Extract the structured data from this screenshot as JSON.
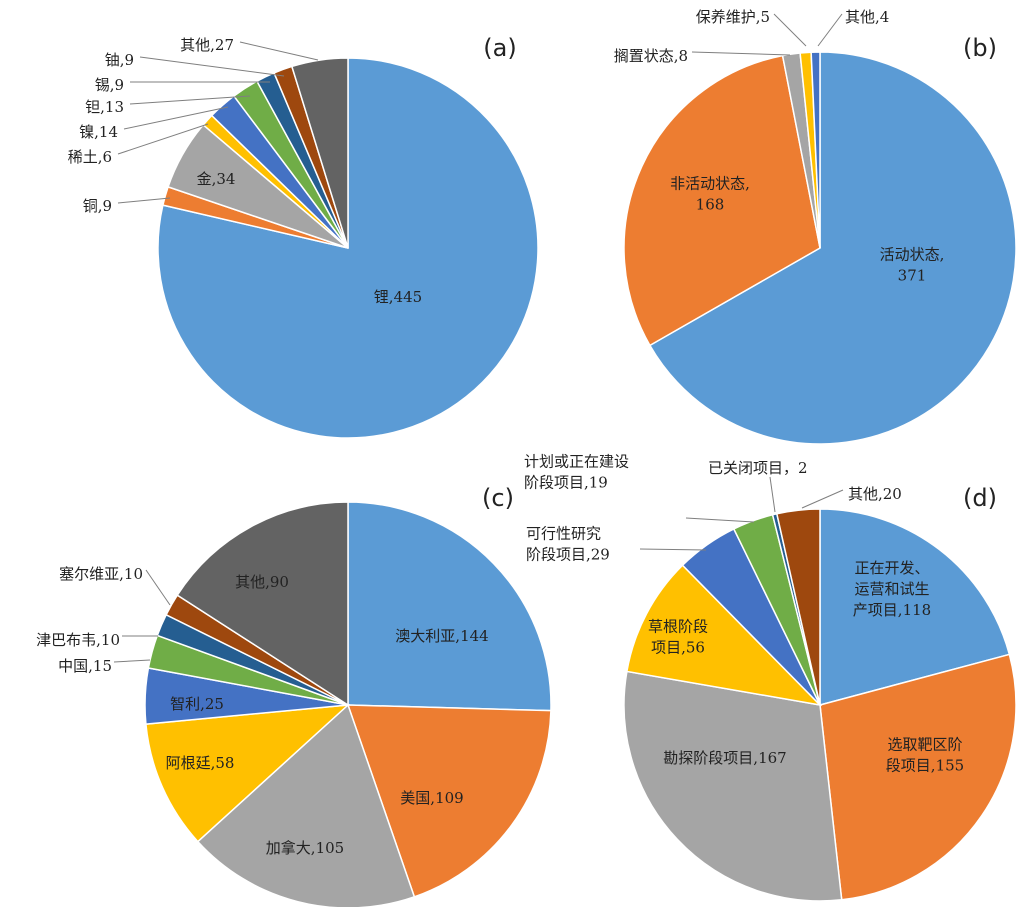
{
  "chart_data": [
    {
      "type": "pie",
      "panel_label": "(a)",
      "colors": [
        "#5b9bd5",
        "#ed7d31",
        "#a5a5a5",
        "#ffc000",
        "#4472c4",
        "#70ad47",
        "#255e91",
        "#9e480e",
        "#636363"
      ],
      "slices": [
        {
          "label": "锂,445",
          "value": 445
        },
        {
          "label": "铜,9",
          "value": 9
        },
        {
          "label": "金,34",
          "value": 34
        },
        {
          "label": "稀土,6",
          "value": 6
        },
        {
          "label": "镍,14",
          "value": 14
        },
        {
          "label": "钽,13",
          "value": 13
        },
        {
          "label": "锡,9",
          "value": 9
        },
        {
          "label": "铀,9",
          "value": 9
        },
        {
          "label": "其他,27",
          "value": 27
        }
      ]
    },
    {
      "type": "pie",
      "panel_label": "(b)",
      "colors": [
        "#5b9bd5",
        "#ed7d31",
        "#a5a5a5",
        "#ffc000",
        "#4472c4"
      ],
      "slices": [
        {
          "label": "活动状态,\n371",
          "value": 371
        },
        {
          "label": "非活动状态,\n168",
          "value": 168
        },
        {
          "label": "搁置状态,8",
          "value": 8
        },
        {
          "label": "保养维护,5",
          "value": 5
        },
        {
          "label": "其他,4",
          "value": 4
        }
      ]
    },
    {
      "type": "pie",
      "panel_label": "(c)",
      "colors": [
        "#5b9bd5",
        "#ed7d31",
        "#a5a5a5",
        "#ffc000",
        "#4472c4",
        "#70ad47",
        "#255e91",
        "#9e480e",
        "#636363"
      ],
      "slices": [
        {
          "label": "澳大利亚,144",
          "value": 144
        },
        {
          "label": "美国,109",
          "value": 109
        },
        {
          "label": "加拿大,105",
          "value": 105
        },
        {
          "label": "阿根廷,58",
          "value": 58
        },
        {
          "label": "智利,25",
          "value": 25
        },
        {
          "label": "中国,15",
          "value": 15
        },
        {
          "label": "津巴布韦,10",
          "value": 10
        },
        {
          "label": "塞尔维亚,10",
          "value": 10
        },
        {
          "label": "其他,90",
          "value": 90
        }
      ]
    },
    {
      "type": "pie",
      "panel_label": "(d)",
      "colors": [
        "#5b9bd5",
        "#ed7d31",
        "#a5a5a5",
        "#ffc000",
        "#4472c4",
        "#70ad47",
        "#255e91",
        "#9e480e"
      ],
      "slices": [
        {
          "label": "正在开发、\n运营和试生\n产项目,118",
          "value": 118
        },
        {
          "label": "选取靶区阶\n段项目,155",
          "value": 155
        },
        {
          "label": "勘探阶段项目,167",
          "value": 167
        },
        {
          "label": "草根阶段\n项目,56",
          "value": 56
        },
        {
          "label": "可行性研究\n阶段项目,29",
          "value": 29
        },
        {
          "label": "计划或正在建设\n阶段项目,19",
          "value": 19
        },
        {
          "label": "已关闭项目，2",
          "value": 2
        },
        {
          "label": "其他,20",
          "value": 20
        }
      ]
    }
  ]
}
